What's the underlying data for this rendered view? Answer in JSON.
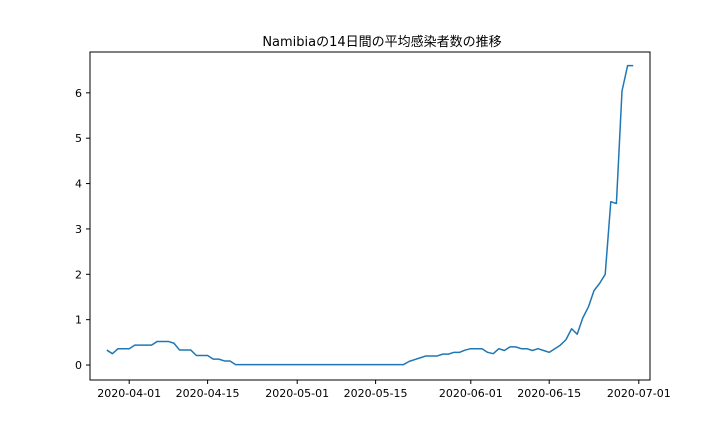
{
  "chart_data": {
    "type": "line",
    "title": "Namibiaの14日間の平均感染者数の推移",
    "xlabel": "",
    "ylabel": "",
    "x_axis": "date",
    "xlim": [
      "2020-03-25",
      "2020-07-03"
    ],
    "ylim": [
      -0.33,
      6.9
    ],
    "x_ticks": [
      "2020-04-01",
      "2020-04-15",
      "2020-05-01",
      "2020-05-15",
      "2020-06-01",
      "2020-06-15",
      "2020-07-01"
    ],
    "y_ticks": [
      0,
      1,
      2,
      3,
      4,
      5,
      6
    ],
    "grid": false,
    "legend": "none",
    "series_color": "#1f77b4",
    "series": [
      {
        "x": [
          "2020-03-28",
          "2020-03-29",
          "2020-03-30",
          "2020-03-31",
          "2020-04-01",
          "2020-04-02",
          "2020-04-03",
          "2020-04-04",
          "2020-04-05",
          "2020-04-06",
          "2020-04-07",
          "2020-04-08",
          "2020-04-09",
          "2020-04-10",
          "2020-04-11",
          "2020-04-12",
          "2020-04-13",
          "2020-04-14",
          "2020-04-15",
          "2020-04-16",
          "2020-04-17",
          "2020-04-18",
          "2020-04-19",
          "2020-04-20",
          "2020-04-21",
          "2020-05-20",
          "2020-05-21",
          "2020-05-22",
          "2020-05-23",
          "2020-05-24",
          "2020-05-25",
          "2020-05-26",
          "2020-05-27",
          "2020-05-28",
          "2020-05-29",
          "2020-05-30",
          "2020-05-31",
          "2020-06-01",
          "2020-06-02",
          "2020-06-03",
          "2020-06-04",
          "2020-06-05",
          "2020-06-06",
          "2020-06-07",
          "2020-06-08",
          "2020-06-09",
          "2020-06-10",
          "2020-06-11",
          "2020-06-12",
          "2020-06-13",
          "2020-06-14",
          "2020-06-15",
          "2020-06-16",
          "2020-06-17",
          "2020-06-18",
          "2020-06-19",
          "2020-06-20",
          "2020-06-21",
          "2020-06-22",
          "2020-06-23",
          "2020-06-24",
          "2020-06-25",
          "2020-06-26",
          "2020-06-27",
          "2020-06-28",
          "2020-06-29",
          "2020-06-30"
        ],
        "values": [
          0.33,
          0.25,
          0.36,
          0.36,
          0.36,
          0.44,
          0.44,
          0.44,
          0.44,
          0.52,
          0.52,
          0.52,
          0.48,
          0.33,
          0.33,
          0.33,
          0.21,
          0.21,
          0.21,
          0.13,
          0.13,
          0.09,
          0.09,
          0.01,
          0.01,
          0.01,
          0.08,
          0.12,
          0.16,
          0.2,
          0.2,
          0.2,
          0.24,
          0.24,
          0.28,
          0.28,
          0.33,
          0.36,
          0.36,
          0.36,
          0.28,
          0.25,
          0.36,
          0.32,
          0.4,
          0.4,
          0.36,
          0.36,
          0.32,
          0.36,
          0.32,
          0.28,
          0.36,
          0.44,
          0.56,
          0.8,
          0.68,
          1.04,
          1.28,
          1.64,
          1.8,
          2.0,
          3.6,
          3.56,
          6.04,
          6.6,
          6.6
        ]
      }
    ]
  }
}
